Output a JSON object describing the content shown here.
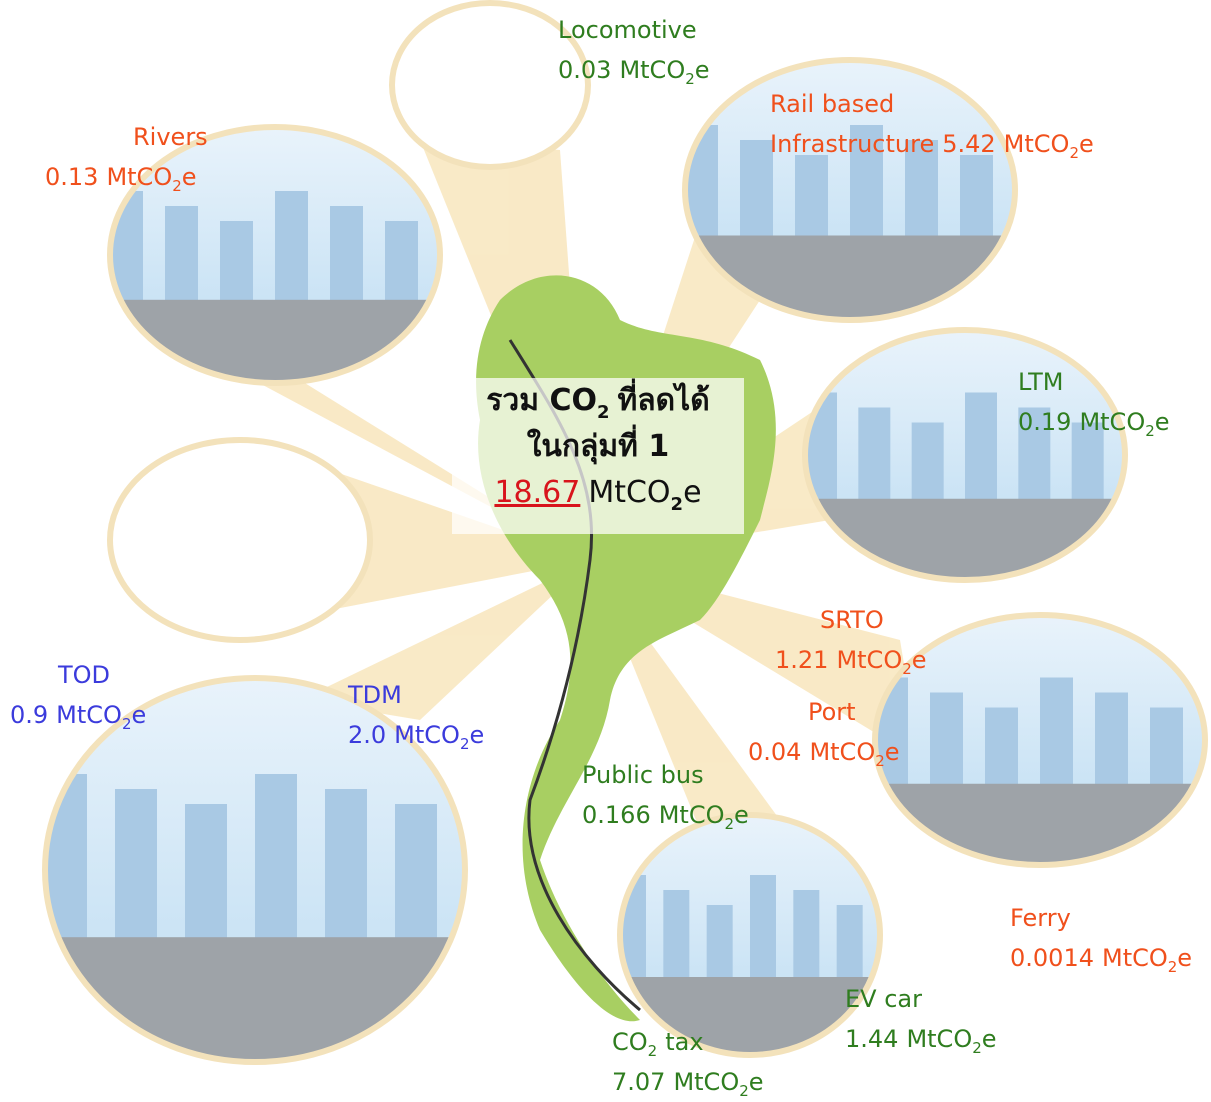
{
  "unit": {
    "text": "MtCO",
    "sub": "2",
    "tail": "e"
  },
  "total": {
    "prefix": "รวม CO",
    "sub": "2",
    "suffix": "ที่ลดได้",
    "line2": "ในกลุ่มที่ 1",
    "value": "18.67"
  },
  "labels": [
    {
      "name": [
        "Locomotive"
      ],
      "value": "0.03",
      "color": "#2f7d1f"
    },
    {
      "name": [
        "Rail based",
        "Infrastructure"
      ],
      "value": "5.42",
      "color": "#f0501c"
    },
    {
      "name": [
        "Rivers"
      ],
      "value": "0.13",
      "color": "#f0501c"
    },
    {
      "name": [
        "LTM"
      ],
      "value": "0.19",
      "color": "#2f7d1f"
    },
    {
      "name": [
        "SRTO"
      ],
      "value": "1.21",
      "color": "#f0501c"
    },
    {
      "name": [
        "Port"
      ],
      "value": "0.04",
      "color": "#f0501c"
    },
    {
      "name": [
        "Ferry"
      ],
      "value": "0.0014",
      "color": "#f0501c"
    },
    {
      "name": [
        "TOD"
      ],
      "value": "0.9",
      "color": "#3b3bdc"
    },
    {
      "name": [
        "TDM"
      ],
      "value": "2.0",
      "color": "#3b3bdc"
    },
    {
      "name": [
        "Public bus"
      ],
      "value": "0.166",
      "color": "#2f7d1f"
    },
    {
      "name": [
        "EV car"
      ],
      "value": "1.44",
      "color": "#2f7d1f"
    },
    {
      "name": [
        "CO"
      ],
      "name_sub": "2",
      "name_tail": "tax",
      "value": "7.07",
      "color": "#2f7d1f"
    }
  ]
}
